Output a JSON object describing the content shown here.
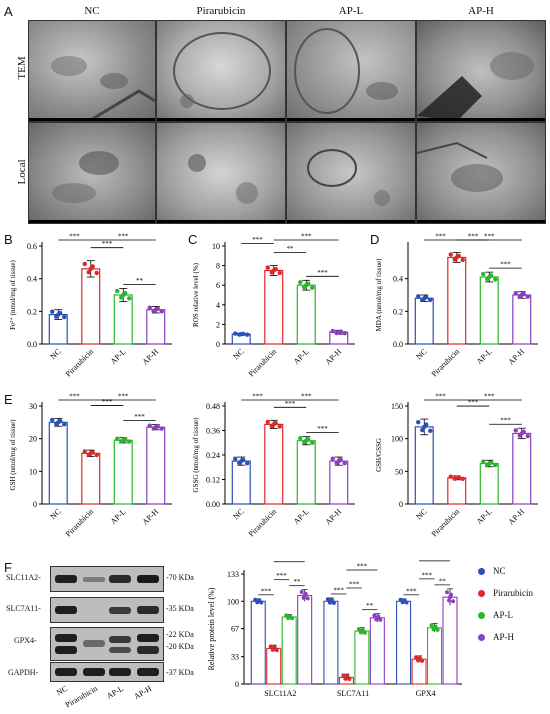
{
  "panel_letters": [
    "A",
    "B",
    "C",
    "D",
    "E",
    "F"
  ],
  "tem": {
    "columns": [
      "NC",
      "Pirarubicin",
      "AP-L",
      "AP-H"
    ],
    "rows": [
      "TEM",
      "Local"
    ]
  },
  "axis_groups": [
    "NC",
    "Pirarubicin",
    "AP-L",
    "AP-H"
  ],
  "colors": {
    "NC": "#2c4fb8",
    "Pirarubicin": "#e02727",
    "AP-L": "#2ab52a",
    "AP-H": "#8a3fc2"
  },
  "western": {
    "left_labels": [
      "SLC11A2-",
      "SLC7A11-",
      "GPX4-",
      "GAPDH-"
    ],
    "right_labels": [
      "-70 KDa",
      "-35 KDa",
      "-22 KDa",
      "-20 KDa",
      "-37 KDa"
    ],
    "lanes": [
      "NC",
      "Pirarubicin",
      "AP-L",
      "AP-H"
    ]
  },
  "legend": [
    "NC",
    "Pirarubicin",
    "AP-L",
    "AP-H"
  ],
  "chart_data": [
    {
      "id": "B",
      "type": "bar",
      "ylabel": "Fe²⁺ (nmol/mg of tissue)",
      "categories": [
        "NC",
        "Pirarubicin",
        "AP-L",
        "AP-H"
      ],
      "values": [
        0.18,
        0.46,
        0.3,
        0.21
      ],
      "errors": [
        0.03,
        0.05,
        0.04,
        0.02
      ],
      "ylim": [
        0,
        0.6
      ],
      "yticks": [
        "0.0",
        "0.2",
        "0.4",
        "0.6"
      ],
      "ytick_values": [
        0,
        0.2,
        0.4,
        0.6
      ],
      "sig": [
        [
          "1",
          "2",
          "***"
        ],
        [
          "2",
          "3",
          "***"
        ],
        [
          "2",
          "4",
          "***"
        ],
        [
          "3",
          "4",
          "**"
        ]
      ]
    },
    {
      "id": "C",
      "type": "bar",
      "ylabel": "ROS relative level (%)",
      "categories": [
        "NC",
        "Pirarubicin",
        "AP-L",
        "AP-H"
      ],
      "values": [
        1.0,
        7.5,
        6.0,
        1.2
      ],
      "errors": [
        0.1,
        0.5,
        0.5,
        0.2
      ],
      "ylim": [
        0,
        10
      ],
      "yticks": [
        "0",
        "2",
        "4",
        "6",
        "8",
        "10"
      ],
      "ytick_values": [
        0,
        2,
        4,
        6,
        8,
        10
      ],
      "sig": [
        [
          "1",
          "2",
          "***"
        ],
        [
          "2",
          "3",
          "**"
        ],
        [
          "2",
          "4",
          "***"
        ],
        [
          "3",
          "4",
          "***"
        ]
      ]
    },
    {
      "id": "D",
      "type": "bar",
      "ylabel": "MDA (nmol/mg of tissue)",
      "categories": [
        "NC",
        "Pirarubicin",
        "AP-L",
        "AP-H"
      ],
      "values": [
        0.28,
        0.53,
        0.41,
        0.3
      ],
      "errors": [
        0.02,
        0.03,
        0.03,
        0.02
      ],
      "ylim": [
        0,
        0.6
      ],
      "yticks": [
        "0.0",
        "0.2",
        "0.4"
      ],
      "ytick_values": [
        0,
        0.2,
        0.4
      ],
      "sig": [
        [
          "1",
          "2",
          "***"
        ],
        [
          "2",
          "3",
          "***"
        ],
        [
          "2",
          "4",
          "***"
        ],
        [
          "3",
          "4",
          "***"
        ]
      ]
    },
    {
      "id": "E1",
      "type": "bar",
      "ylabel": "GSH (nmol/mg of tissue)",
      "categories": [
        "NC",
        "Pirarubicin",
        "AP-L",
        "AP-H"
      ],
      "values": [
        25,
        15.5,
        19.5,
        23.5
      ],
      "errors": [
        1.2,
        1.0,
        0.8,
        0.8
      ],
      "ylim": [
        0,
        30
      ],
      "yticks": [
        "0",
        "10",
        "20",
        "30"
      ],
      "ytick_values": [
        0,
        10,
        20,
        30
      ],
      "sig": [
        [
          "1",
          "2",
          "***"
        ],
        [
          "2",
          "3",
          "***"
        ],
        [
          "2",
          "4",
          "***"
        ],
        [
          "3",
          "4",
          "***"
        ]
      ]
    },
    {
      "id": "E2",
      "type": "bar",
      "ylabel": "GSSG (nmol/mg of tissue)",
      "categories": [
        "NC",
        "Pirarubicin",
        "AP-L",
        "AP-H"
      ],
      "values": [
        0.21,
        0.39,
        0.31,
        0.21
      ],
      "errors": [
        0.02,
        0.02,
        0.02,
        0.02
      ],
      "ylim": [
        0,
        0.48
      ],
      "yticks": [
        "0.00",
        "0.12",
        "0.24",
        "0.36",
        "0.48"
      ],
      "ytick_values": [
        0,
        0.12,
        0.24,
        0.36,
        0.48
      ],
      "sig": [
        [
          "1",
          "2",
          "***"
        ],
        [
          "2",
          "3",
          "***"
        ],
        [
          "2",
          "4",
          "***"
        ],
        [
          "3",
          "4",
          "***"
        ]
      ]
    },
    {
      "id": "E3",
      "type": "bar",
      "ylabel": "GSH/GSSG",
      "categories": [
        "NC",
        "Pirarubicin",
        "AP-L",
        "AP-H"
      ],
      "values": [
        118,
        40,
        62,
        108
      ],
      "errors": [
        12,
        3,
        5,
        8
      ],
      "ylim": [
        0,
        150
      ],
      "yticks": [
        "0",
        "50",
        "100",
        "150"
      ],
      "ytick_values": [
        0,
        50,
        100,
        150
      ],
      "sig": [
        [
          "1",
          "2",
          "***"
        ],
        [
          "2",
          "3",
          "***"
        ],
        [
          "2",
          "4",
          "***"
        ],
        [
          "3",
          "4",
          "***"
        ]
      ]
    },
    {
      "id": "F",
      "type": "bar",
      "ylabel": "Relative protein level (%)",
      "categories": [
        "SLC11A2",
        "SLC7A11",
        "GPX4"
      ],
      "yticks": [
        "0",
        "33",
        "67",
        "100",
        "133"
      ],
      "ytick_values": [
        0,
        33,
        67,
        100,
        133
      ],
      "ylim": [
        0,
        133
      ],
      "series": [
        {
          "name": "NC",
          "values": [
            100,
            100,
            100
          ],
          "errors": [
            3,
            4,
            3
          ]
        },
        {
          "name": "Pirarubicin",
          "values": [
            43,
            8,
            30
          ],
          "errors": [
            4,
            4,
            4
          ]
        },
        {
          "name": "AP-L",
          "values": [
            81,
            64,
            68
          ],
          "errors": [
            3,
            4,
            5
          ]
        },
        {
          "name": "AP-H",
          "values": [
            107,
            80,
            105
          ],
          "errors": [
            7,
            5,
            10
          ]
        }
      ],
      "sig": [
        {
          "cat": 0,
          "pairs": [
            [
              "0",
              "1",
              "***"
            ],
            [
              "1",
              "2",
              "***"
            ],
            [
              "1",
              "3",
              "***"
            ],
            [
              "2",
              "3",
              "**"
            ]
          ]
        },
        {
          "cat": 1,
          "pairs": [
            [
              "0",
              "1",
              "***"
            ],
            [
              "1",
              "2",
              "***"
            ],
            [
              "1",
              "3",
              "***"
            ],
            [
              "2",
              "3",
              "**"
            ]
          ]
        },
        {
          "cat": 2,
          "pairs": [
            [
              "0",
              "1",
              "***"
            ],
            [
              "1",
              "2",
              "***"
            ],
            [
              "1",
              "3",
              "***"
            ],
            [
              "2",
              "3",
              "**"
            ]
          ]
        }
      ]
    }
  ]
}
